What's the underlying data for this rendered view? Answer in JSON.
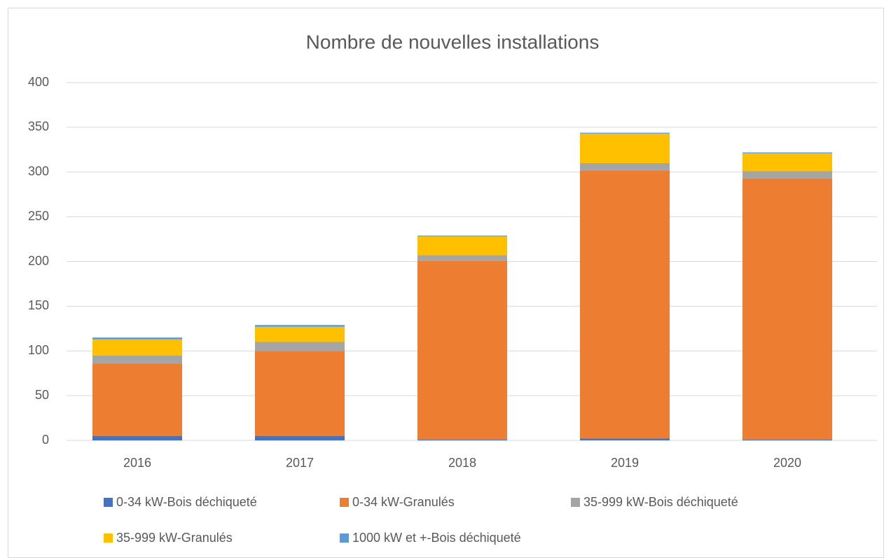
{
  "chart_data": {
    "type": "stacked_bar",
    "title": "Nombre de nouvelles installations",
    "categories": [
      "2016",
      "2017",
      "2018",
      "2019",
      "2020"
    ],
    "series": [
      {
        "name": "0-34 kW-Bois déchiqueté",
        "color": "#4472c4",
        "values": [
          5,
          5,
          1,
          2,
          1
        ]
      },
      {
        "name": "0-34 kW-Granulés",
        "color": "#ed7d31",
        "values": [
          81,
          95,
          200,
          300,
          292
        ]
      },
      {
        "name": "35-999 kW-Bois déchiqueté",
        "color": "#a5a5a5",
        "values": [
          9,
          10,
          6,
          8,
          8
        ]
      },
      {
        "name": "35-999 kW-Granulés",
        "color": "#ffc000",
        "values": [
          18,
          17,
          21,
          33,
          20
        ]
      },
      {
        "name": "1000 kW et +-Bois déchiqueté",
        "color": "#5b9bd5",
        "values": [
          2,
          2,
          1,
          1,
          1
        ]
      }
    ],
    "ylim": [
      0,
      400
    ],
    "yticks": [
      0,
      50,
      100,
      150,
      200,
      250,
      300,
      350,
      400
    ],
    "grid": true
  }
}
